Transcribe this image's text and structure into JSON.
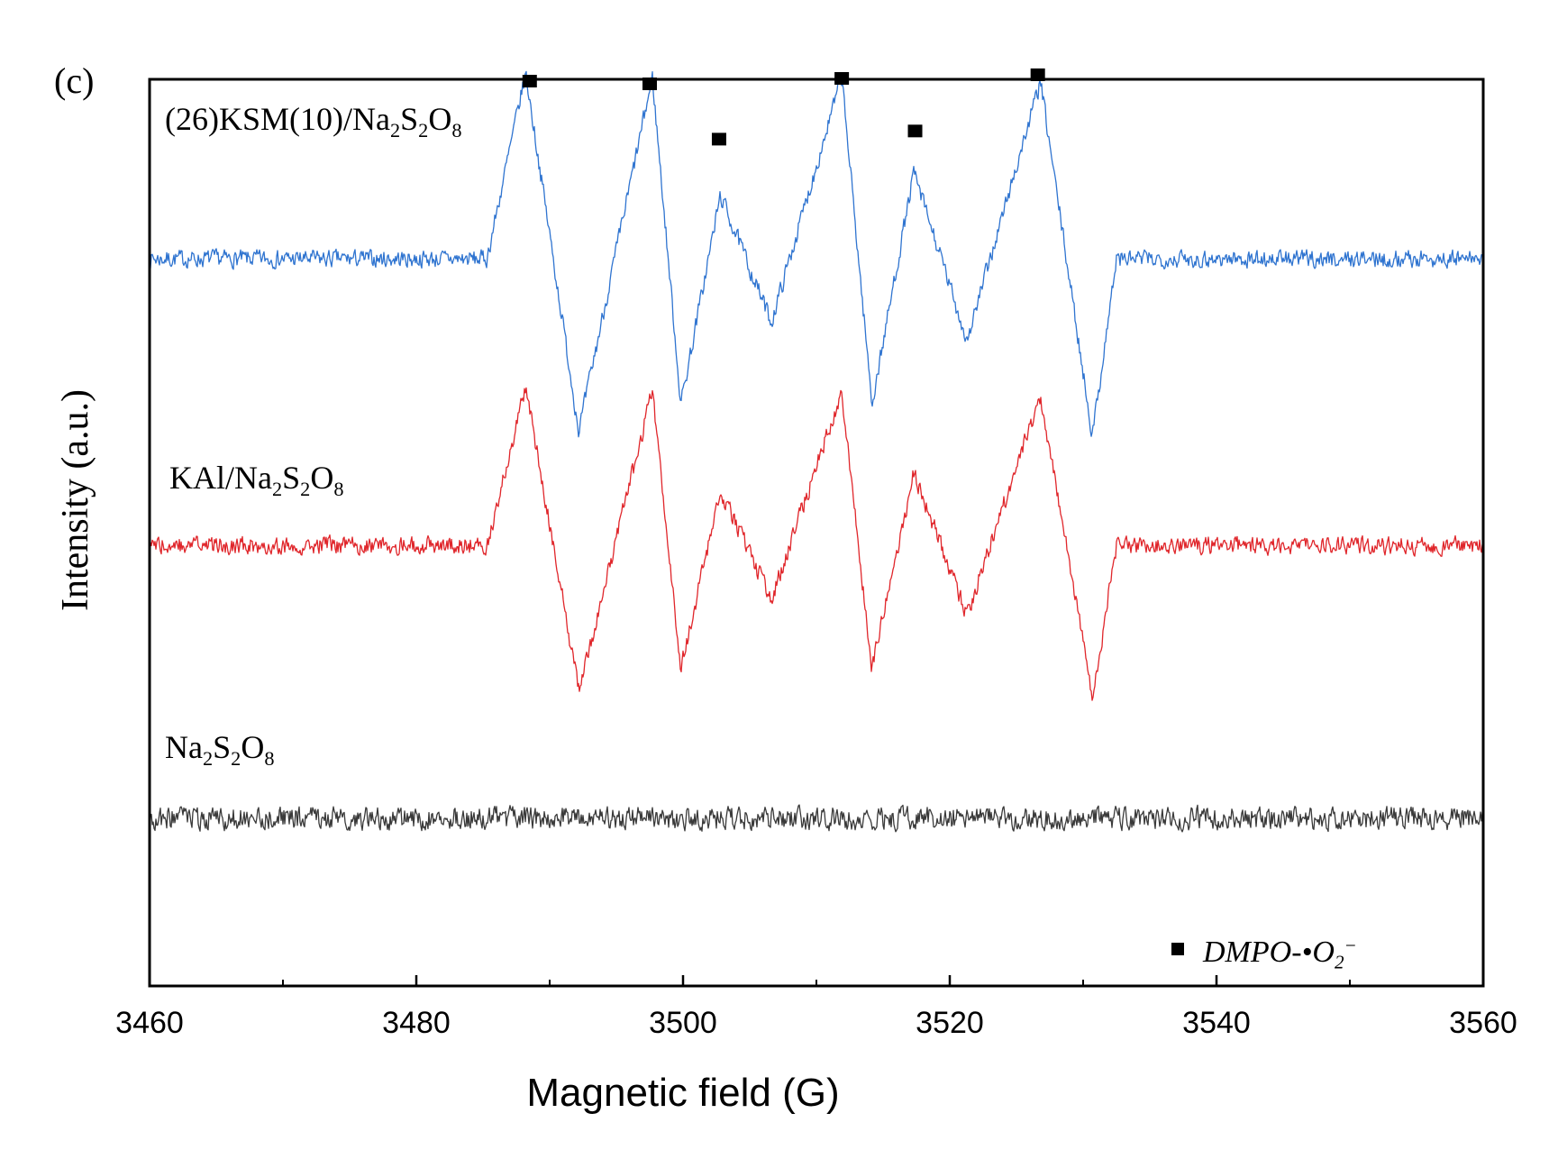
{
  "chart_data": {
    "type": "line",
    "panel_label": "(c)",
    "xlabel": "Magnetic field (G)",
    "ylabel": "Intensity (a.u.)",
    "xlim": [
      3460,
      3560
    ],
    "ylim": [
      0,
      10
    ],
    "x_ticks": [
      3460,
      3480,
      3500,
      3520,
      3540,
      3560
    ],
    "x_tick_labels": [
      "3460",
      "3480",
      "3500",
      "3520",
      "3540",
      "3560"
    ],
    "x_minor_ticks": [
      3470,
      3490,
      3510,
      3530,
      3550
    ],
    "y_ticks_shown": false,
    "noise_seed": 7,
    "series": [
      {
        "name": "(26)KSM(10)/Na2S2O8",
        "label_parts": [
          {
            "text": "(26)KSM(10)/Na"
          },
          {
            "text": "2",
            "sub": true
          },
          {
            "text": "S"
          },
          {
            "text": "2",
            "sub": true
          },
          {
            "text": "O"
          },
          {
            "text": "8",
            "sub": true
          }
        ],
        "color": "#2f74d0",
        "baseline": 8.02,
        "noise": 0.13,
        "peak_scale": 1.0
      },
      {
        "name": "KAl/Na2S2O8",
        "label_parts": [
          {
            "text": "KAl/Na"
          },
          {
            "text": "2",
            "sub": true
          },
          {
            "text": "S"
          },
          {
            "text": "2",
            "sub": true
          },
          {
            "text": "O"
          },
          {
            "text": "8",
            "sub": true
          }
        ],
        "color": "#e0262b",
        "baseline": 4.86,
        "noise": 0.13,
        "peak_scale": 0.85
      },
      {
        "name": "Na2S2O8",
        "label_parts": [
          {
            "text": "Na"
          },
          {
            "text": "2",
            "sub": true
          },
          {
            "text": "S"
          },
          {
            "text": "2",
            "sub": true
          },
          {
            "text": "O"
          },
          {
            "text": "8",
            "sub": true
          }
        ],
        "color": "#3a3a3a",
        "baseline": 1.85,
        "noise": 0.17,
        "peak_scale": 0
      }
    ],
    "spectrum_peaks": [
      {
        "x": 3488.2,
        "maximum": 2.05,
        "minimum": -1.9
      },
      {
        "x": 3497.7,
        "maximum": 2.0,
        "minimum": -1.6
      },
      {
        "x": 3502.8,
        "maximum": 0.7,
        "minimum": -0.7
      },
      {
        "x": 3511.9,
        "maximum": 2.0,
        "minimum": -1.6
      },
      {
        "x": 3517.3,
        "maximum": 0.95,
        "minimum": -0.9
      },
      {
        "x": 3526.8,
        "maximum": 1.95,
        "minimum": -1.95
      }
    ],
    "square_markers": [
      {
        "x": 3488.5,
        "y": 9.98
      },
      {
        "x": 3497.5,
        "y": 9.95
      },
      {
        "x": 3502.7,
        "y": 9.34
      },
      {
        "x": 3511.9,
        "y": 10.01
      },
      {
        "x": 3517.4,
        "y": 9.43
      },
      {
        "x": 3526.6,
        "y": 10.05
      }
    ],
    "legend": {
      "position": "bottom-right",
      "marker": "square",
      "parts": [
        {
          "text": "DMPO-•O"
        },
        {
          "text": "2",
          "sub": true
        },
        {
          "text": "−",
          "sup": true
        }
      ]
    }
  }
}
